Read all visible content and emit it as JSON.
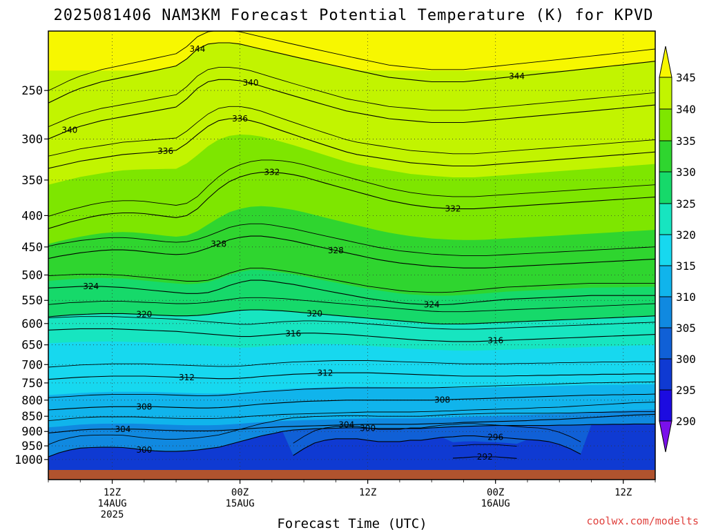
{
  "title": "2025081406 NAM3KM Forecast Potential Temperature (K) for KPVD",
  "credit": "coolwx.com/modelts",
  "chart_data": {
    "type": "contour",
    "xlabel": "Forecast Time (UTC)",
    "ylabel": "",
    "x_ticks": [
      {
        "lines": [
          "12Z",
          "14AUG",
          "2025"
        ]
      },
      {
        "lines": [
          "00Z",
          "15AUG"
        ]
      },
      {
        "lines": [
          "12Z"
        ]
      },
      {
        "lines": [
          "00Z",
          "16AUG"
        ]
      },
      {
        "lines": [
          "12Z"
        ]
      }
    ],
    "y_ticks": [
      "250",
      "300",
      "350",
      "400",
      "450",
      "500",
      "550",
      "600",
      "650",
      "700",
      "750",
      "800",
      "850",
      "900",
      "950",
      "1000"
    ],
    "y_scale": "log-pressure (hPa, inverted)",
    "colorbar": {
      "levels": [
        "345",
        "340",
        "335",
        "330",
        "325",
        "320",
        "315",
        "310",
        "305",
        "300",
        "295",
        "290"
      ],
      "colors": [
        "#f7f700",
        "#c2f400",
        "#7ee600",
        "#2fd52f",
        "#16d96a",
        "#17e5c0",
        "#17d8ef",
        "#10b4ec",
        "#1089e0",
        "#1060d6",
        "#0f3ad2",
        "#1c0be0",
        "#7a10ea"
      ]
    },
    "contour_labels": [
      "344",
      "340",
      "336",
      "332",
      "328",
      "324",
      "320",
      "316",
      "312",
      "308",
      "304",
      "300",
      "296",
      "292"
    ],
    "series": [
      {
        "theta_K": 292,
        "p_hPa_by_hour": [
          null,
          null,
          null,
          null,
          null,
          null,
          null,
          null,
          null,
          null,
          null,
          null,
          null,
          null,
          null,
          null,
          null,
          null,
          null,
          null,
          null,
          null,
          null,
          null,
          null,
          null,
          null,
          null,
          null,
          null,
          null,
          null,
          null,
          null,
          null,
          null,
          null,
          null,
          995,
          993,
          990,
          990,
          990,
          993,
          996,
          null,
          null,
          null,
          null,
          null,
          null,
          null,
          null,
          null,
          null,
          null,
          null,
          null
        ]
      },
      {
        "theta_K": 296,
        "p_hPa_by_hour": [
          null,
          null,
          null,
          null,
          null,
          null,
          null,
          null,
          null,
          null,
          null,
          null,
          null,
          null,
          null,
          null,
          null,
          null,
          null,
          null,
          null,
          null,
          null,
          985,
          960,
          940,
          930,
          925,
          925,
          925,
          930,
          935,
          935,
          935,
          930,
          930,
          925,
          920,
          918,
          915,
          915,
          918,
          920,
          922,
          925,
          928,
          930,
          935,
          945,
          960,
          980,
          null,
          null,
          null,
          null,
          null,
          null,
          null
        ]
      },
      {
        "theta_K": 300,
        "p_hPa_by_hour": [
          990,
          975,
          965,
          958,
          956,
          955,
          955,
          956,
          960,
          965,
          968,
          970,
          970,
          968,
          965,
          960,
          955,
          945,
          935,
          925,
          915,
          908,
          900,
          895,
          893,
          891,
          890,
          889,
          888,
          888,
          889,
          890,
          890,
          890,
          890,
          890,
          888,
          886,
          884,
          883,
          882,
          881,
          880,
          880,
          880,
          880,
          880,
          880,
          879,
          879,
          878,
          877,
          877,
          876,
          876,
          875,
          875,
          875
        ]
      },
      {
        "theta_K": 304,
        "p_hPa_by_hour": [
          905,
          902,
          898,
          895,
          893,
          892,
          892,
          892,
          892,
          893,
          895,
          896,
          897,
          898,
          898,
          898,
          897,
          895,
          893,
          890,
          888,
          886,
          884,
          883,
          882,
          881,
          880,
          879,
          878,
          877,
          876,
          876,
          876,
          876,
          876,
          875,
          874,
          873,
          872,
          870,
          869,
          868,
          867,
          866,
          865,
          864,
          862,
          861,
          860,
          858,
          856,
          854,
          852,
          850,
          848,
          846,
          845,
          844
        ]
      },
      {
        "theta_K": 308,
        "p_hPa_by_hour": [
          830,
          828,
          826,
          824,
          822,
          821,
          820,
          820,
          820,
          820,
          820,
          821,
          822,
          823,
          824,
          824,
          823,
          821,
          818,
          815,
          812,
          810,
          808,
          806,
          804,
          803,
          802,
          801,
          800,
          800,
          800,
          800,
          800,
          800,
          800,
          800,
          800,
          799,
          798,
          797,
          796,
          795,
          794,
          793,
          792,
          791,
          790,
          789,
          788,
          787,
          786,
          785,
          785,
          784,
          784,
          783,
          783,
          782
        ]
      },
      {
        "theta_K": 312,
        "p_hPa_by_hour": [
          740,
          738,
          736,
          734,
          733,
          732,
          731,
          731,
          731,
          731,
          732,
          733,
          734,
          735,
          736,
          737,
          738,
          738,
          737,
          735,
          732,
          730,
          728,
          726,
          725,
          724,
          723,
          722,
          722,
          722,
          722,
          723,
          724,
          725,
          726,
          727,
          728,
          729,
          730,
          731,
          731,
          731,
          731,
          731,
          730,
          730,
          729,
          729,
          728,
          728,
          727,
          727,
          726,
          726,
          726,
          725,
          725,
          725
        ]
      },
      {
        "theta_K": 316,
        "p_hPa_by_hour": [
          615,
          614,
          613,
          612,
          612,
          612,
          612,
          613,
          614,
          615,
          616,
          617,
          618,
          620,
          622,
          624,
          626,
          628,
          630,
          630,
          628,
          626,
          624,
          623,
          622,
          622,
          623,
          624,
          625,
          627,
          629,
          631,
          633,
          635,
          637,
          639,
          640,
          641,
          642,
          642,
          642,
          641,
          640,
          639,
          638,
          637,
          636,
          635,
          634,
          633,
          632,
          631,
          630,
          629,
          628,
          627,
          626,
          625
        ]
      },
      {
        "theta_K": 320,
        "p_hPa_by_hour": [
          585,
          583,
          581,
          580,
          579,
          578,
          578,
          578,
          579,
          580,
          581,
          582,
          583,
          583,
          582,
          580,
          577,
          574,
          571,
          570,
          570,
          571,
          572,
          574,
          576,
          578,
          580,
          582,
          584,
          586,
          588,
          590,
          592,
          594,
          596,
          598,
          600,
          601,
          601,
          601,
          600,
          599,
          598,
          597,
          596,
          595,
          594,
          593,
          592,
          591,
          590,
          589,
          588,
          587,
          586,
          585,
          584,
          583
        ]
      },
      {
        "theta_K": 324,
        "p_hPa_by_hour": [
          525,
          524,
          523,
          522,
          522,
          522,
          523,
          524,
          526,
          528,
          530,
          532,
          534,
          536,
          536,
          534,
          528,
          520,
          514,
          510,
          510,
          512,
          515,
          518,
          522,
          526,
          530,
          534,
          538,
          542,
          546,
          549,
          552,
          555,
          557,
          558,
          559,
          559,
          558,
          556,
          554,
          552,
          550,
          548,
          547,
          546,
          545,
          544,
          543,
          542,
          541,
          540,
          540,
          540,
          540,
          540,
          540,
          540
        ]
      },
      {
        "theta_K": 328,
        "p_hPa_by_hour": [
          470,
          466,
          463,
          460,
          458,
          456,
          455,
          455,
          456,
          458,
          460,
          462,
          463,
          462,
          458,
          452,
          445,
          438,
          434,
          432,
          432,
          434,
          437,
          440,
          444,
          448,
          452,
          456,
          460,
          464,
          468,
          472,
          475,
          478,
          480,
          482,
          484,
          485,
          486,
          487,
          487,
          487,
          486,
          485,
          484,
          483,
          482,
          481,
          480,
          479,
          478,
          477,
          476,
          475,
          474,
          473,
          472,
          471
        ]
      },
      {
        "theta_K": 332,
        "p_hPa_by_hour": [
          420,
          415,
          410,
          406,
          402,
          399,
          397,
          396,
          396,
          397,
          399,
          401,
          403,
          400,
          390,
          375,
          362,
          352,
          346,
          342,
          340,
          340,
          341,
          343,
          346,
          350,
          354,
          358,
          362,
          366,
          370,
          374,
          378,
          381,
          384,
          386,
          388,
          389,
          390,
          390,
          390,
          389,
          388,
          387,
          386,
          385,
          384,
          383,
          382,
          381,
          380,
          379,
          378,
          377,
          376,
          375,
          374,
          373
        ]
      },
      {
        "theta_K": 336,
        "p_hPa_by_hour": [
          335,
          332,
          329,
          326,
          324,
          322,
          320,
          318,
          317,
          316,
          315,
          314,
          313,
          305,
          295,
          286,
          280,
          278,
          278,
          280,
          283,
          287,
          291,
          295,
          299,
          303,
          307,
          311,
          315,
          318,
          320,
          322,
          324,
          326,
          328,
          329,
          330,
          331,
          332,
          332,
          332,
          331,
          330,
          329,
          328,
          327,
          326,
          325,
          324,
          323,
          322,
          321,
          320,
          319,
          318,
          317,
          316,
          315
        ]
      },
      {
        "theta_K": 340,
        "p_hPa_by_hour": [
          300,
          295,
          290,
          286,
          283,
          280,
          278,
          276,
          274,
          272,
          270,
          268,
          266,
          258,
          248,
          242,
          240,
          240,
          241,
          243,
          246,
          249,
          252,
          255,
          258,
          261,
          264,
          267,
          270,
          272,
          274,
          276,
          278,
          279,
          280,
          281,
          282,
          282,
          282,
          282,
          281,
          280,
          279,
          278,
          277,
          276,
          275,
          274,
          273,
          272,
          271,
          270,
          269,
          268,
          267,
          266,
          265,
          264
        ]
      },
      {
        "theta_K": 344,
        "p_hPa_by_hour": [
          262,
          257,
          252,
          248,
          245,
          242,
          240,
          238,
          236,
          234,
          232,
          230,
          228,
          222,
          214,
          210,
          209,
          209,
          210,
          212,
          214,
          216,
          218,
          220,
          222,
          224,
          226,
          228,
          230,
          232,
          234,
          236,
          238,
          239,
          240,
          241,
          242,
          242,
          242,
          242,
          241,
          240,
          239,
          238,
          237,
          236,
          235,
          234,
          233,
          232,
          231,
          230,
          229,
          228,
          227,
          226,
          225,
          224
        ]
      }
    ]
  }
}
